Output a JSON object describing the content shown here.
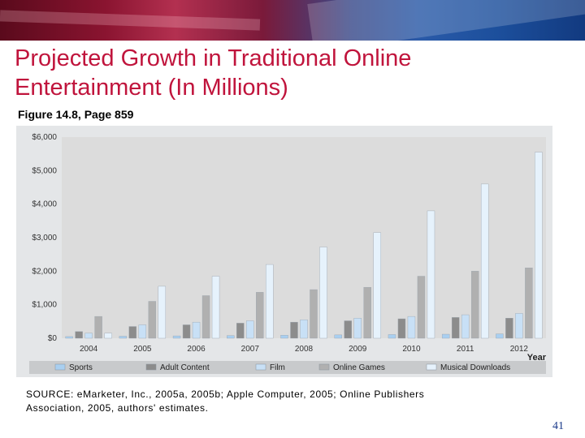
{
  "slide": {
    "title_line1": "Projected Growth in Traditional Online",
    "title_line2": "Entertainment (In Millions)",
    "figure_ref": "Figure 14.8, Page 859",
    "source_line1": "SOURCE: eMarketer, Inc., 2005a, 2005b; Apple Computer, 2005; Online Publishers",
    "source_line2": "Association, 2005, authors' estimates.",
    "page_number": "41"
  },
  "chart_data": {
    "type": "bar",
    "title": "",
    "xlabel": "Year",
    "ylabel": "",
    "ylim": [
      0,
      6000
    ],
    "yticks": [
      "$0",
      "$1,000",
      "$2,000",
      "$3,000",
      "$4,000",
      "$5,000",
      "$6,000"
    ],
    "categories": [
      "2004",
      "2005",
      "2006",
      "2007",
      "2008",
      "2009",
      "2010",
      "2011",
      "2012"
    ],
    "series": [
      {
        "name": "Sports",
        "color": "#a9cff0",
        "values": [
          50,
          60,
          70,
          80,
          90,
          100,
          110,
          120,
          130
        ]
      },
      {
        "name": "Adult Content",
        "color": "#8c8c8c",
        "values": [
          200,
          350,
          400,
          450,
          480,
          520,
          580,
          620,
          600
        ]
      },
      {
        "name": "Film",
        "color": "#c8e0f6",
        "values": [
          150,
          400,
          480,
          520,
          550,
          600,
          650,
          700,
          740
        ]
      },
      {
        "name": "Online Games",
        "color": "#b0b0b0",
        "values": [
          650,
          1100,
          1270,
          1370,
          1450,
          1520,
          1850,
          2000,
          2100
        ]
      },
      {
        "name": "Musical Downloads",
        "color": "#e6f2fc",
        "values": [
          150,
          1550,
          1850,
          2200,
          2720,
          3150,
          3800,
          4600,
          5550
        ]
      }
    ],
    "legend_position": "bottom",
    "grid": false
  }
}
